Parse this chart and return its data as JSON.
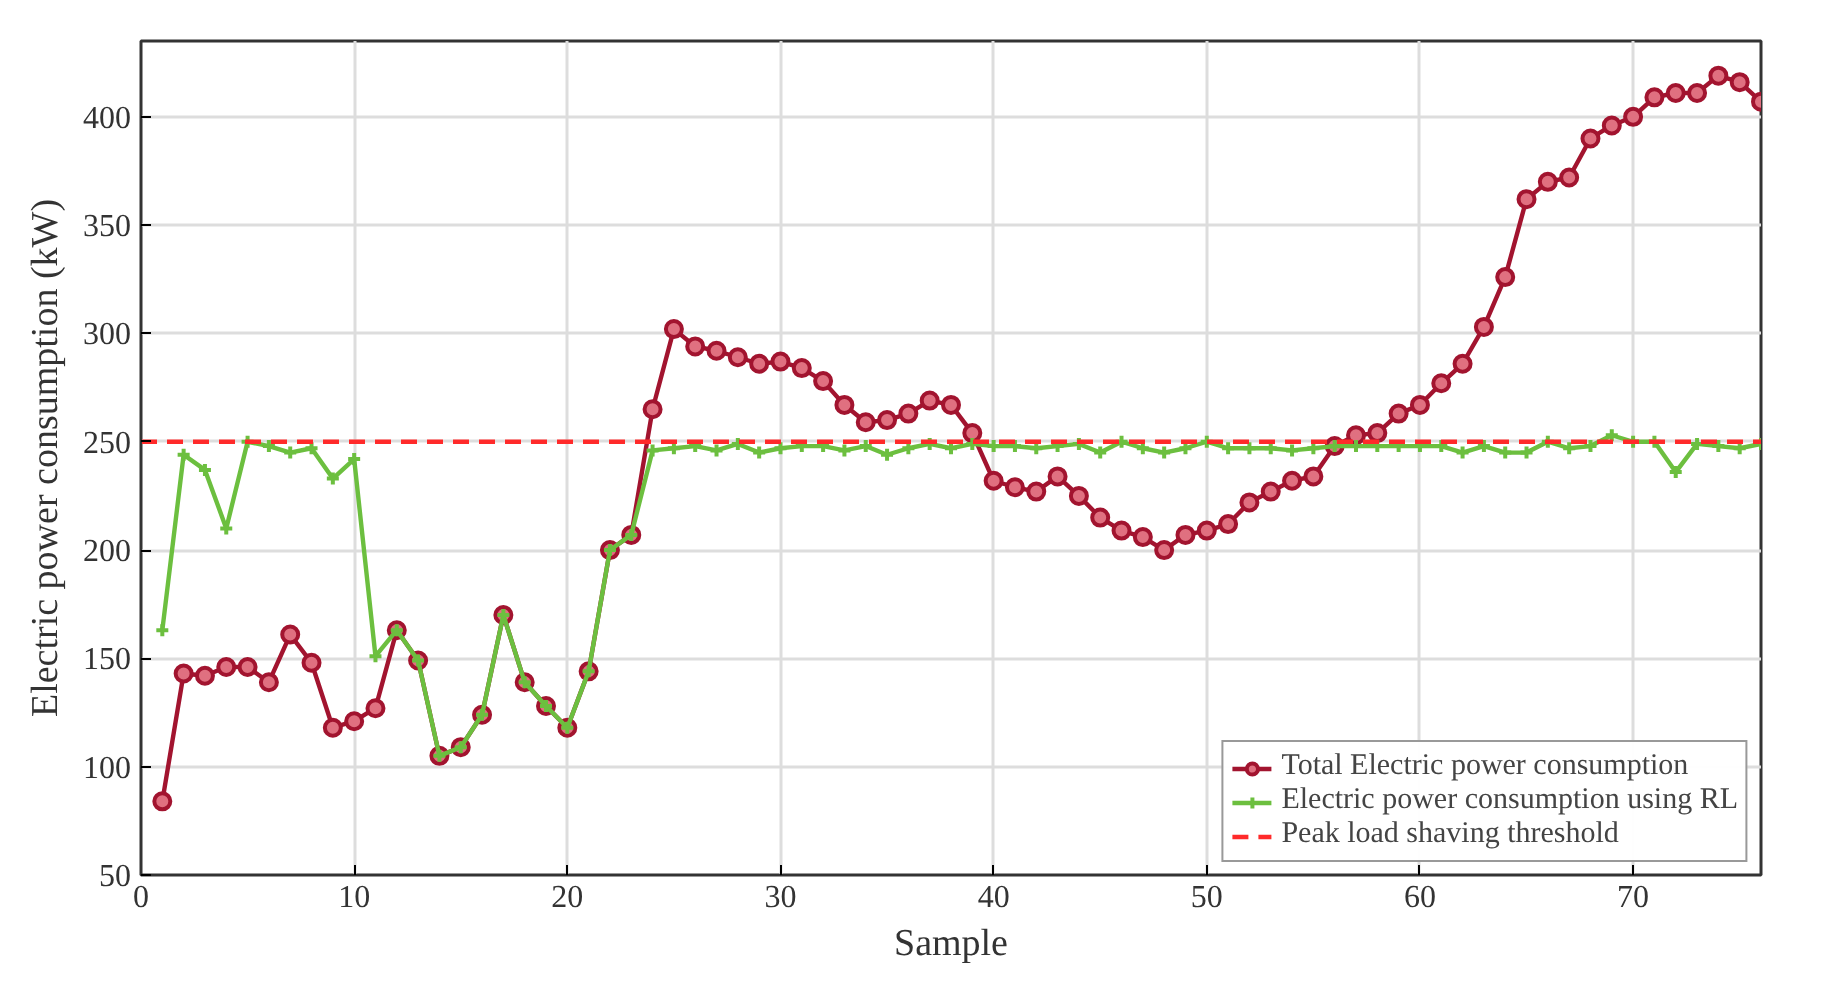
{
  "chart_data": {
    "type": "line",
    "xlabel": "Sample",
    "ylabel": "Electric power consumption (kW)",
    "x": [
      1,
      2,
      3,
      4,
      5,
      6,
      7,
      8,
      9,
      10,
      11,
      12,
      13,
      14,
      15,
      16,
      17,
      18,
      19,
      20,
      21,
      22,
      23,
      24,
      25,
      26,
      27,
      28,
      29,
      30,
      31,
      32,
      33,
      34,
      35,
      36,
      37,
      38,
      39,
      40,
      41,
      42,
      43,
      44,
      45,
      46,
      47,
      48,
      49,
      50,
      51,
      52,
      53,
      54,
      55,
      56,
      57,
      58,
      59,
      60,
      61,
      62,
      63,
      64,
      65,
      66,
      67,
      68,
      69,
      70,
      71,
      72,
      73,
      74,
      75,
      76
    ],
    "series": [
      {
        "name": "Total Electric power consumption",
        "color": "#a2142f",
        "marker": "circle",
        "values": [
          84,
          143,
          142,
          146,
          146,
          139,
          161,
          148,
          118,
          121,
          127,
          163,
          149,
          105,
          109,
          124,
          170,
          139,
          128,
          118,
          144,
          200,
          207,
          265,
          302,
          294,
          292,
          289,
          286,
          287,
          284,
          278,
          267,
          259,
          260,
          263,
          269,
          267,
          254,
          232,
          229,
          227,
          234,
          225,
          215,
          209,
          206,
          200,
          207,
          209,
          212,
          222,
          227,
          232,
          234,
          248,
          253,
          254,
          263,
          267,
          277,
          286,
          303,
          326,
          362,
          370,
          372,
          390,
          396,
          400,
          409,
          411,
          411,
          419,
          416,
          407
        ]
      },
      {
        "name": "Electric power consumption using RL",
        "color": "#6cbf3f",
        "marker": "cross",
        "values": [
          163,
          244,
          237,
          210,
          250,
          248,
          245,
          247,
          233,
          242,
          151,
          163,
          149,
          105,
          109,
          124,
          170,
          139,
          128,
          118,
          144,
          200,
          207,
          246,
          247,
          248,
          246,
          249,
          245,
          247,
          248,
          248,
          246,
          248,
          244,
          247,
          249,
          247,
          249,
          248,
          248,
          247,
          248,
          249,
          245,
          250,
          247,
          245,
          247,
          250,
          247,
          247,
          247,
          246,
          247,
          248,
          248,
          248,
          248,
          248,
          248,
          245,
          248,
          245,
          245,
          250,
          247,
          248,
          253,
          250,
          250,
          236,
          249,
          248,
          247,
          249
        ]
      }
    ],
    "ref_lines": [
      {
        "axis": "y",
        "value": 250,
        "label": "Peak load shaving threshold",
        "color": "#ff2a2a",
        "line_style": "dashed"
      }
    ],
    "xlim": [
      0,
      76
    ],
    "ylim": [
      50,
      435
    ],
    "xticks": [
      0,
      10,
      20,
      30,
      40,
      50,
      60,
      70
    ],
    "yticks": [
      50,
      100,
      150,
      200,
      250,
      300,
      350,
      400
    ],
    "grid": true,
    "legend": "bottom right",
    "line_style": "solid"
  }
}
